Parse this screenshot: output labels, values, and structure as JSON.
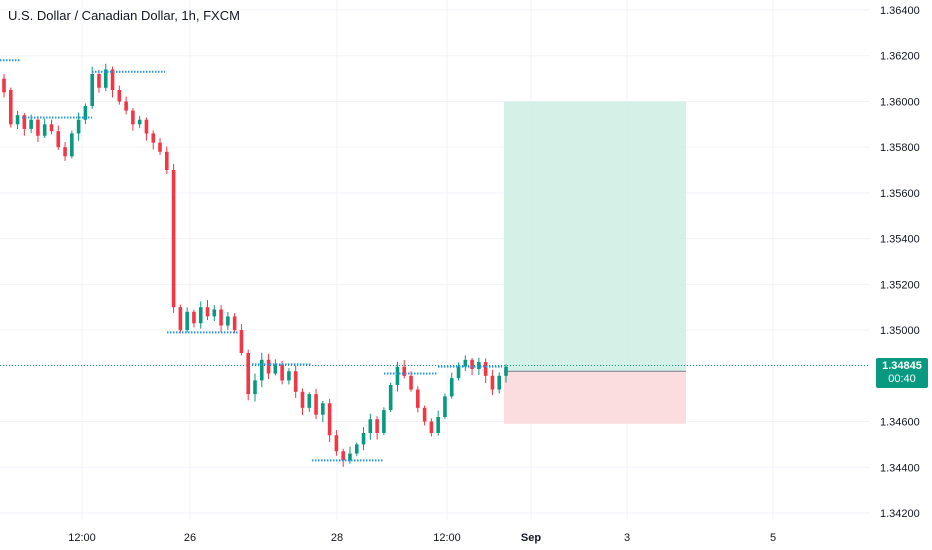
{
  "header": {
    "title": "U.S. Dollar / Canadian Dollar, 1h, FXCM"
  },
  "price_badge": {
    "price": "1.34845",
    "countdown": "00:40"
  },
  "colors": {
    "up": "#089981",
    "down": "#f23645",
    "dotted_level": "#2196f3",
    "profit_zone": "#cdeee4",
    "loss_zone": "#fcd7d9",
    "grid": "#f0f3fa",
    "axis_text": "#131722"
  },
  "chart_data": {
    "type": "candlestick",
    "title": "U.S. Dollar / Canadian Dollar, 1h, FXCM",
    "y_ticks": [
      "1.36400",
      "1.36200",
      "1.36000",
      "1.35800",
      "1.35600",
      "1.35400",
      "1.35200",
      "1.35000",
      "1.34600",
      "1.34400",
      "1.34200"
    ],
    "ylim": [
      1.3418,
      1.3642
    ],
    "x_ticks": [
      "12:00",
      "26",
      "28",
      "12:00",
      "Sep",
      "3",
      "5"
    ],
    "current_price": 1.34845,
    "long_position": {
      "entry": 1.3482,
      "target": 1.36,
      "stop": 1.3459
    },
    "price_path": [
      [
        1.361,
        1.3604
      ],
      [
        1.3605,
        1.359
      ],
      [
        1.359,
        1.3594
      ],
      [
        1.3594,
        1.3588
      ],
      [
        1.3588,
        1.3592
      ],
      [
        1.3592,
        1.3585
      ],
      [
        1.3585,
        1.359
      ],
      [
        1.359,
        1.3587
      ],
      [
        1.3587,
        1.358
      ],
      [
        1.358,
        1.3576
      ],
      [
        1.3576,
        1.3586
      ],
      [
        1.3586,
        1.3592
      ],
      [
        1.3592,
        1.3598
      ],
      [
        1.3598,
        1.3612
      ],
      [
        1.3612,
        1.3606
      ],
      [
        1.3606,
        1.3614
      ],
      [
        1.3614,
        1.3605
      ],
      [
        1.3605,
        1.36
      ],
      [
        1.36,
        1.3596
      ],
      [
        1.3596,
        1.359
      ],
      [
        1.359,
        1.3592
      ],
      [
        1.3592,
        1.3586
      ],
      [
        1.3586,
        1.3582
      ],
      [
        1.3582,
        1.3578
      ],
      [
        1.3578,
        1.357
      ],
      [
        1.357,
        1.351
      ],
      [
        1.351,
        1.35
      ],
      [
        1.35,
        1.3508
      ],
      [
        1.3508,
        1.3503
      ],
      [
        1.3503,
        1.351
      ],
      [
        1.351,
        1.3506
      ],
      [
        1.3506,
        1.3509
      ],
      [
        1.3509,
        1.3502
      ],
      [
        1.3502,
        1.3506
      ],
      [
        1.3506,
        1.35
      ],
      [
        1.35,
        1.349
      ],
      [
        1.349,
        1.3472
      ],
      [
        1.3472,
        1.3478
      ],
      [
        1.3478,
        1.3487
      ],
      [
        1.3487,
        1.3481
      ],
      [
        1.3481,
        1.3485
      ],
      [
        1.3485,
        1.3478
      ],
      [
        1.3478,
        1.3482
      ],
      [
        1.3482,
        1.3473
      ],
      [
        1.3473,
        1.3466
      ],
      [
        1.3466,
        1.3472
      ],
      [
        1.3472,
        1.3463
      ],
      [
        1.3463,
        1.3468
      ],
      [
        1.3468,
        1.3454
      ],
      [
        1.3454,
        1.3447
      ],
      [
        1.3447,
        1.3443
      ],
      [
        1.3443,
        1.3446
      ],
      [
        1.3446,
        1.345
      ],
      [
        1.345,
        1.3455
      ],
      [
        1.3455,
        1.3461
      ],
      [
        1.3461,
        1.3455
      ],
      [
        1.3455,
        1.3465
      ],
      [
        1.3465,
        1.3476
      ],
      [
        1.3476,
        1.3484
      ],
      [
        1.3484,
        1.348
      ],
      [
        1.348,
        1.3474
      ],
      [
        1.3474,
        1.3466
      ],
      [
        1.3466,
        1.346
      ],
      [
        1.346,
        1.3455
      ],
      [
        1.3455,
        1.3462
      ],
      [
        1.3462,
        1.3471
      ],
      [
        1.3471,
        1.3479
      ],
      [
        1.3479,
        1.3484
      ],
      [
        1.3484,
        1.3487
      ],
      [
        1.3487,
        1.3483
      ],
      [
        1.3483,
        1.3486
      ],
      [
        1.3486,
        1.348
      ],
      [
        1.348,
        1.3474
      ],
      [
        1.3474,
        1.348
      ],
      [
        1.348,
        1.3484
      ]
    ],
    "grid": true
  }
}
